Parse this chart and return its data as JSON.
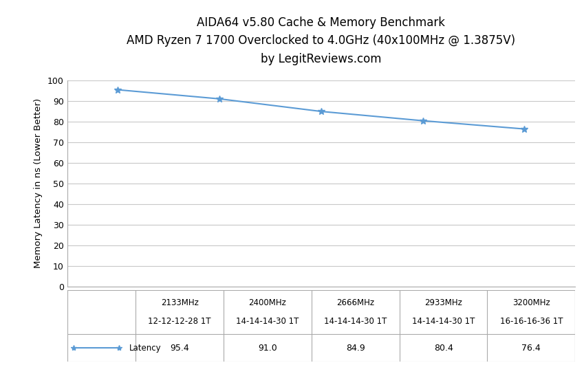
{
  "title_line1": "AIDA64 v5.80 Cache & Memory Benchmark",
  "title_line2": "AMD Ryzen 7 1700 Overclocked to 4.0GHz (40x100MHz @ 1.3875V)",
  "title_line3": "by LegitReviews.com",
  "mhz_labels": [
    "2133MHz",
    "2400MHz",
    "2666MHz",
    "2933MHz",
    "3200MHz"
  ],
  "timing_labels": [
    "12-12-12-28 1T",
    "14-14-14-30 1T",
    "14-14-14-30 1T",
    "14-14-14-30 1T",
    "16-16-16-36 1T"
  ],
  "ylabel": "Memory Latency in ns (Lower Better)",
  "x_positions": [
    0,
    1,
    2,
    3,
    4
  ],
  "latency_values": [
    95.4,
    91.0,
    84.9,
    80.4,
    76.4
  ],
  "legend_label": "Latency",
  "line_color": "#5B9BD5",
  "marker_color": "#5B9BD5",
  "ylim": [
    0,
    100
  ],
  "ytick_step": 10,
  "bg_color": "#FFFFFF",
  "grid_color": "#C8C8C8",
  "title_fontsize": 12,
  "axis_label_fontsize": 9.5,
  "tick_fontsize": 9,
  "table_text_fontsize": 8.5,
  "table_value_fontsize": 9,
  "table_border_color": "#AAAAAA",
  "table_values": [
    "95.4",
    "91.0",
    "84.9",
    "80.4",
    "76.4"
  ]
}
